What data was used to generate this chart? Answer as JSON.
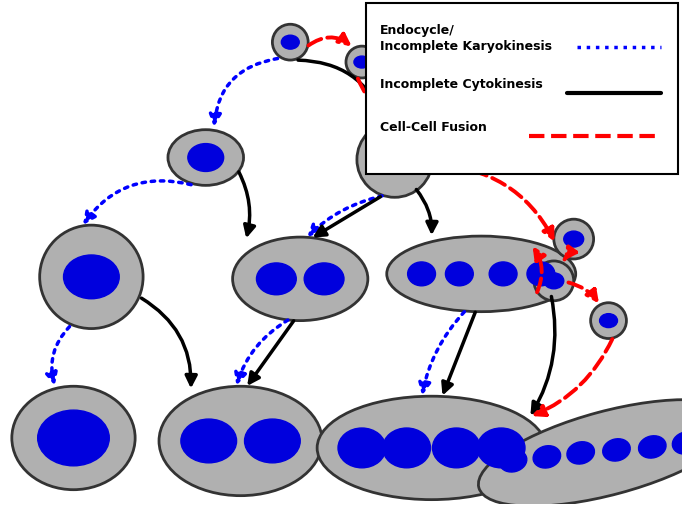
{
  "cell_body_color": "#b0b0b0",
  "cell_outline_color": "#333333",
  "nucleus_color": "#0000dd",
  "background_color": "#ffffff",
  "arrow_black_color": "#000000",
  "arrow_blue_color": "#0000ff",
  "arrow_red_color": "#ff0000",
  "legend": {
    "endocycle_text": "Endocycle/\nIncomplete Karyokinesis",
    "cytokinesis_text": "Incomplete Cytokinesis",
    "fusion_text": "Cell-Cell Fusion"
  }
}
